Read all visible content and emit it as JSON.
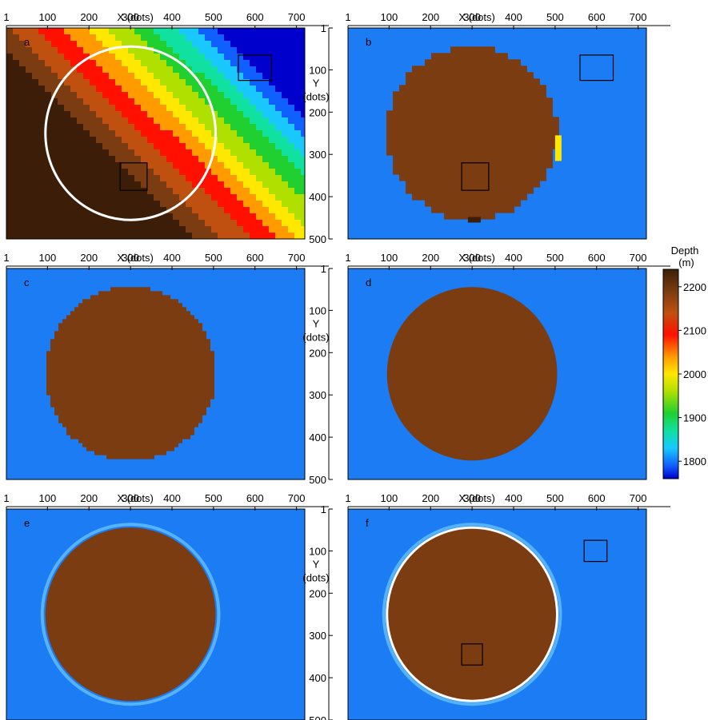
{
  "chart_data": {
    "type": "heatmap",
    "x_axis": {
      "label": "X (dots)",
      "ticks": [
        "1",
        "100",
        "200",
        "300",
        "400",
        "500",
        "600",
        "700"
      ],
      "tick_values": [
        1,
        100,
        200,
        300,
        400,
        500,
        600,
        700
      ],
      "range": [
        1,
        720
      ]
    },
    "y_axis": {
      "label_line1": "Y",
      "label_line2": "(dots)",
      "ticks": [
        "1",
        "100",
        "200",
        "300",
        "400",
        "500"
      ],
      "tick_values": [
        1,
        100,
        200,
        300,
        400,
        500
      ],
      "range": [
        1,
        500
      ]
    },
    "colorbar": {
      "title_line1": "Depth",
      "title_line2": "(m)",
      "ticks": [
        "2200",
        "2100",
        "2000",
        "1900",
        "1800"
      ],
      "tick_values": [
        2200,
        2100,
        2000,
        1900,
        1800
      ],
      "range": [
        1760,
        2240
      ]
    },
    "panels": [
      {
        "id": "a",
        "label": "a",
        "circle": {
          "cx": 300,
          "cy": 250,
          "r": 205,
          "color": "#ffffff"
        },
        "boxes": [
          {
            "x0": 560,
            "y0": 65,
            "x1": 640,
            "y1": 125
          },
          {
            "x0": 275,
            "y0": 320,
            "x1": 340,
            "y1": 385
          }
        ]
      },
      {
        "id": "b",
        "label": "b",
        "boxes": [
          {
            "x0": 560,
            "y0": 65,
            "x1": 640,
            "y1": 125
          },
          {
            "x0": 275,
            "y0": 320,
            "x1": 340,
            "y1": 385
          }
        ]
      },
      {
        "id": "c",
        "label": "c"
      },
      {
        "id": "d",
        "label": "d"
      },
      {
        "id": "e",
        "label": "e"
      },
      {
        "id": "f",
        "label": "f",
        "circle": {
          "cx": 300,
          "cy": 250,
          "r": 205,
          "color": "#ffffff"
        },
        "boxes": [
          {
            "x0": 570,
            "y0": 75,
            "x1": 625,
            "y1": 125
          },
          {
            "x0": 275,
            "y0": 320,
            "x1": 325,
            "y1": 370
          }
        ]
      }
    ],
    "colors": {
      "background_depth_color": "#1b7cf4",
      "body_depth_color": "#7a3c10"
    }
  }
}
